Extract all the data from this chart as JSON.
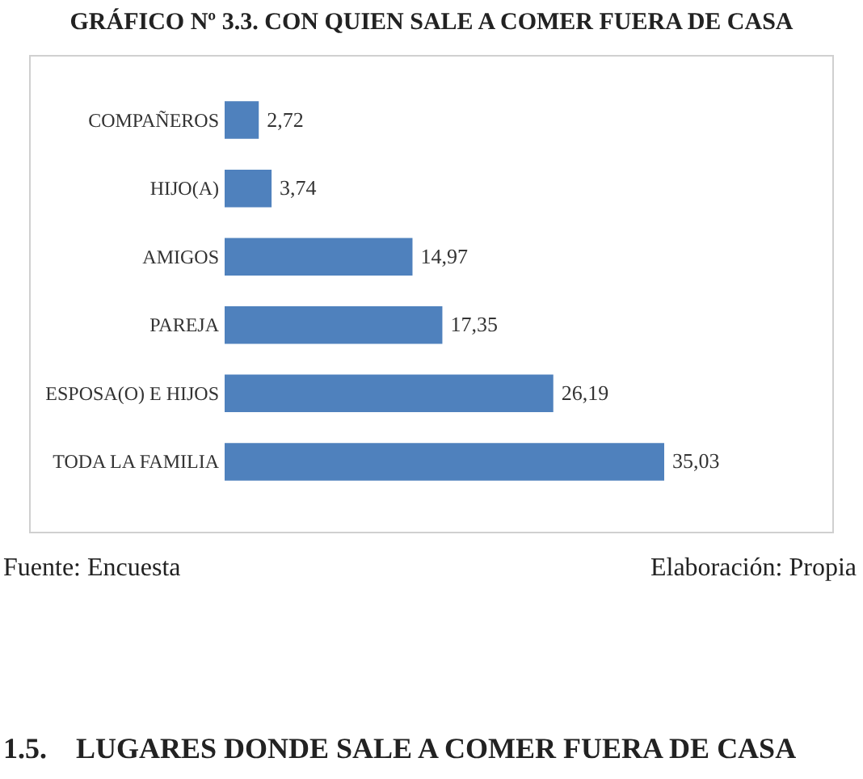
{
  "chart_data": {
    "type": "bar",
    "orientation": "horizontal",
    "title": "GRÁFICO Nº 3.3. CON QUIEN  SALE A COMER FUERA DE CASA",
    "categories": [
      "COMPAÑEROS",
      "HIJO(A)",
      "AMIGOS",
      "PAREJA",
      "ESPOSA(O) E HIJOS",
      "TODA LA FAMILIA"
    ],
    "values": [
      2.72,
      3.74,
      14.97,
      17.35,
      26.19,
      35.03
    ],
    "value_labels": [
      "2,72",
      "3,74",
      "14,97",
      "17,35",
      "26,19",
      "35,03"
    ],
    "color": "#4f81bd",
    "annotations": [
      "Fuente: Encuesta",
      "Elaboración: Propia",
      "1.5.    LUGARES DONDE SALE A COMER FUERA DE CASA"
    ]
  }
}
